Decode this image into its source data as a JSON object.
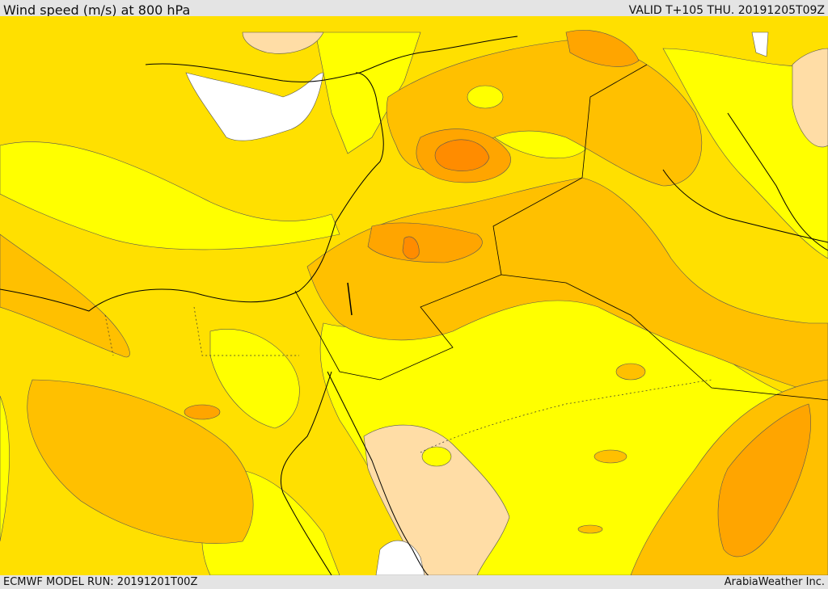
{
  "header": {
    "title": "Wind speed (m/s) at 800 hPa",
    "valid": "VALID T+105 THU. 20191205T09Z"
  },
  "footer": {
    "model_run": "ECMWF MODEL RUN: 20191201T00Z",
    "credit": "ArabiaWeather Inc."
  },
  "colors": {
    "speed_lowest": "#ffffff",
    "speed_low": "#ffff00",
    "speed_light": "#ffe000",
    "speed_moderate": "#ffc000",
    "speed_strong": "#ffa500",
    "speed_stronger": "#ff8c00",
    "light_tan": "#ffdda6",
    "outline": "#000000",
    "contour": "#555555"
  }
}
